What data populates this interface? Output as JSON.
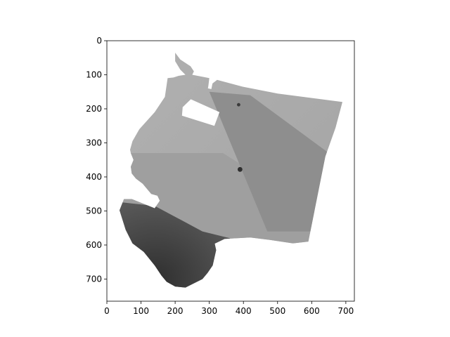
{
  "chart_data": {
    "type": "heatmap",
    "title": "",
    "xlabel": "",
    "ylabel": "",
    "xlim": [
      0,
      725
    ],
    "ylim": [
      765,
      0
    ],
    "x_ticks": [
      0,
      100,
      200,
      300,
      400,
      500,
      600,
      700
    ],
    "y_ticks": [
      0,
      100,
      200,
      300,
      400,
      500,
      600,
      700
    ],
    "colormap": "gray",
    "grid": false,
    "legend": "none",
    "image_content": "grayscale aerial orthomosaic of a field with white (no-data) background",
    "field_outline": [
      [
        200,
        35
      ],
      [
        215,
        55
      ],
      [
        245,
        75
      ],
      [
        255,
        90
      ],
      [
        250,
        100
      ],
      [
        300,
        110
      ],
      [
        297,
        135
      ],
      [
        323,
        115
      ],
      [
        398,
        135
      ],
      [
        500,
        155
      ],
      [
        690,
        180
      ],
      [
        670,
        255
      ],
      [
        640,
        340
      ],
      [
        590,
        590
      ],
      [
        545,
        595
      ],
      [
        478,
        585
      ],
      [
        420,
        578
      ],
      [
        345,
        582
      ],
      [
        316,
        596
      ],
      [
        320,
        615
      ],
      [
        310,
        660
      ],
      [
        295,
        682
      ],
      [
        280,
        700
      ],
      [
        250,
        715
      ],
      [
        230,
        725
      ],
      [
        200,
        722
      ],
      [
        175,
        708
      ],
      [
        160,
        690
      ],
      [
        140,
        660
      ],
      [
        108,
        620
      ],
      [
        75,
        595
      ],
      [
        55,
        555
      ],
      [
        37,
        498
      ],
      [
        50,
        465
      ],
      [
        73,
        465
      ],
      [
        105,
        478
      ],
      [
        140,
        492
      ],
      [
        155,
        470
      ],
      [
        148,
        455
      ],
      [
        130,
        450
      ],
      [
        105,
        420
      ],
      [
        85,
        405
      ],
      [
        73,
        390
      ],
      [
        70,
        370
      ],
      [
        78,
        350
      ],
      [
        70,
        330
      ],
      [
        68,
        320
      ],
      [
        75,
        295
      ],
      [
        95,
        260
      ],
      [
        140,
        210
      ],
      [
        170,
        165
      ],
      [
        178,
        110
      ],
      [
        195,
        108
      ],
      [
        210,
        103
      ],
      [
        230,
        100
      ],
      [
        215,
        85
      ],
      [
        200,
        60
      ]
    ],
    "blobs": [
      {
        "cx": 390,
        "cy": 378,
        "r": 7,
        "color": "#2e2e2e"
      },
      {
        "cx": 386,
        "cy": 188,
        "r": 5,
        "color": "#3a3a3a"
      }
    ],
    "colors": {
      "light_region": "#b0b0b0",
      "mid_region": "#9d9d9d",
      "diagonal_band": "#8a8a8a",
      "dark_region": "#4a4a4a",
      "darkest_region": "#323232",
      "mask": "#ffffff"
    }
  }
}
